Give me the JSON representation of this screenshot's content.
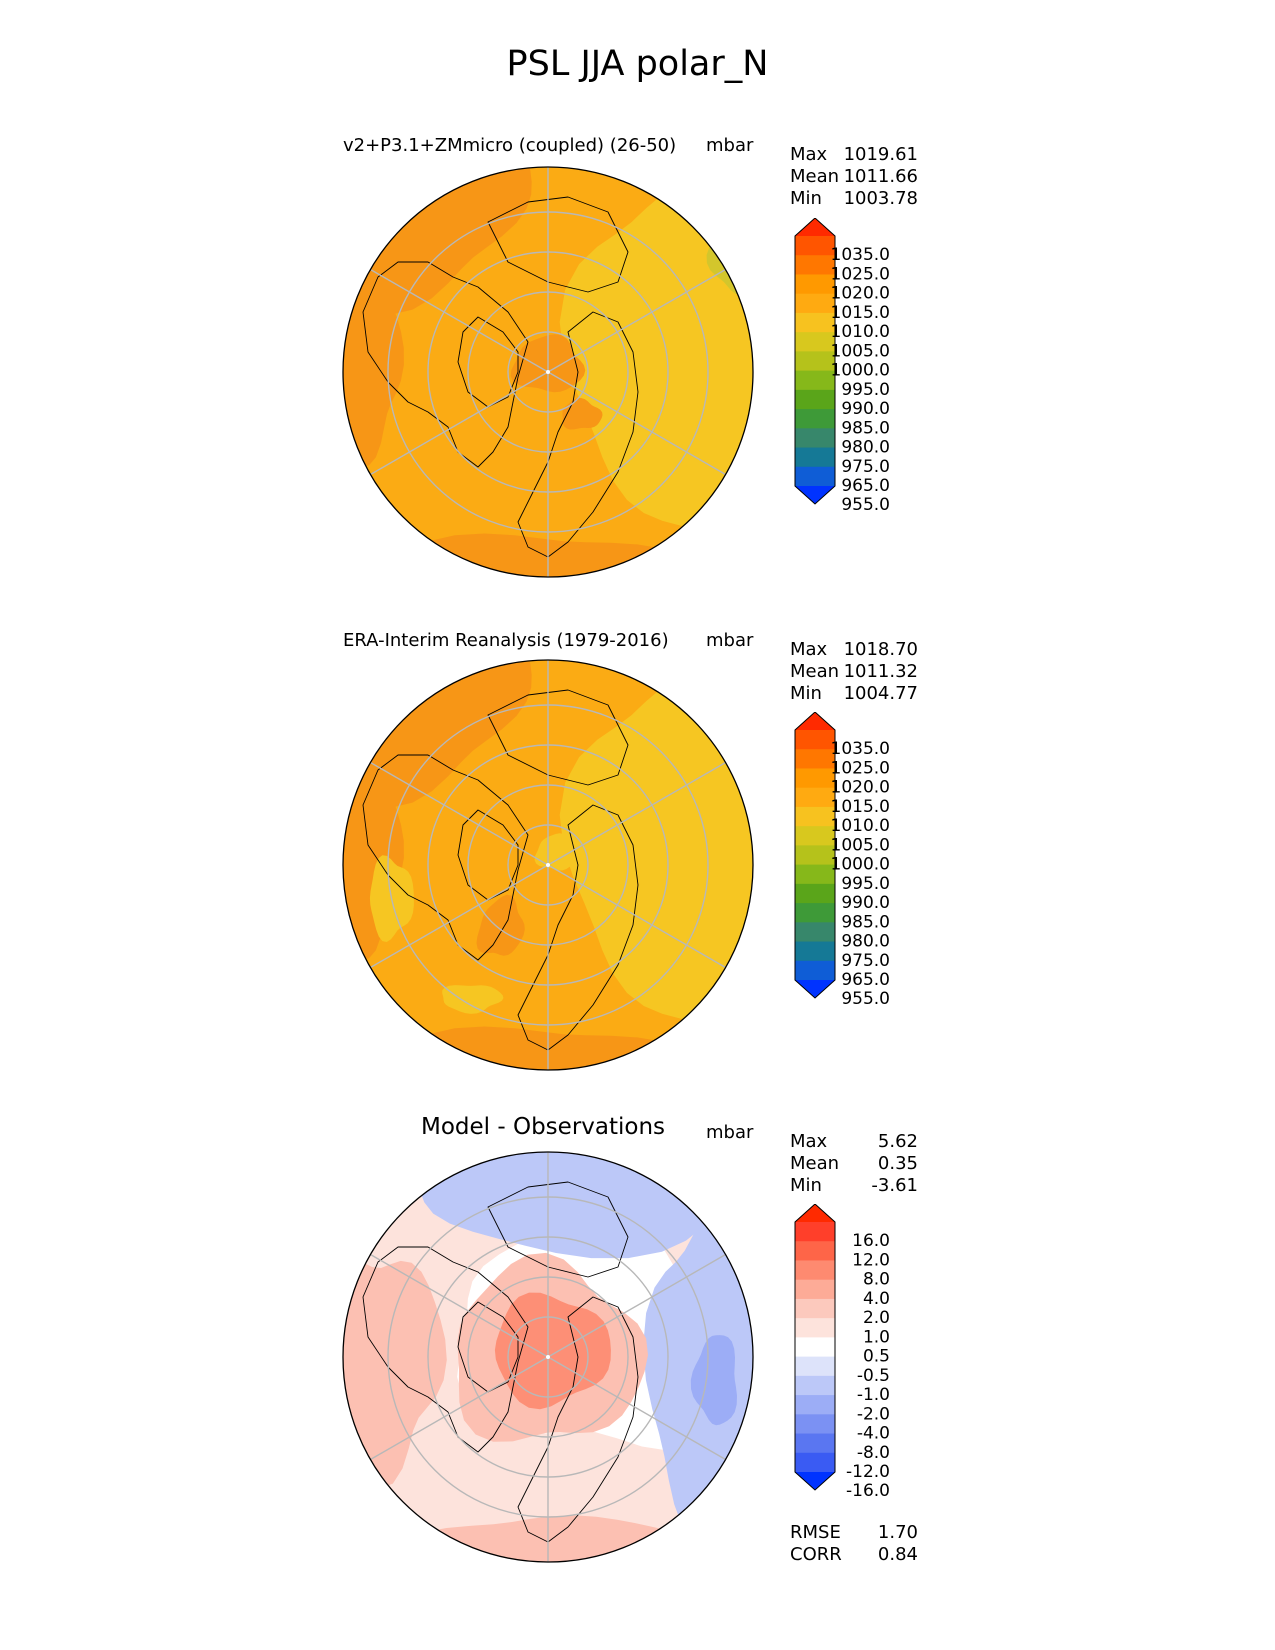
{
  "figure": {
    "title": "PSL JJA polar_N",
    "colors": {
      "ocean_outline": "#000000",
      "grid": "#b8b8b8"
    }
  },
  "panels": [
    {
      "id": "model",
      "title": "v2+P3.1+ZMmicro (coupled) (26-50)",
      "units": "mbar",
      "stats": [
        {
          "label": "Max",
          "value": "1019.61"
        },
        {
          "label": "Mean",
          "value": "1011.66"
        },
        {
          "label": "Min",
          "value": "1003.78"
        }
      ],
      "colorbar": {
        "ticks": [
          "1035.0",
          "1025.0",
          "1020.0",
          "1015.0",
          "1010.0",
          "1005.0",
          "1000.0",
          "995.0",
          "990.0",
          "985.0",
          "980.0",
          "975.0",
          "965.0",
          "955.0"
        ],
        "colors": [
          "#ff2a00",
          "#ff5500",
          "#ff7700",
          "#ff9900",
          "#ffaa11",
          "#f7c21f",
          "#d8c81e",
          "#b5c21b",
          "#86b81a",
          "#5aa51a",
          "#3e9a38",
          "#37876b",
          "#157996",
          "#0f5dd6",
          "#0033ff"
        ],
        "extend": "both"
      },
      "map_colors": {
        "base": "#fbab14",
        "high": "#f79616",
        "low": "#f6c622",
        "lowest": "#d3c62c"
      }
    },
    {
      "id": "obs",
      "title": "ERA-Interim Reanalysis (1979-2016)",
      "units": "mbar",
      "stats": [
        {
          "label": "Max",
          "value": "1018.70"
        },
        {
          "label": "Mean",
          "value": "1011.32"
        },
        {
          "label": "Min",
          "value": "1004.77"
        }
      ],
      "colorbar": {
        "ticks": [
          "1035.0",
          "1025.0",
          "1020.0",
          "1015.0",
          "1010.0",
          "1005.0",
          "1000.0",
          "995.0",
          "990.0",
          "985.0",
          "980.0",
          "975.0",
          "965.0",
          "955.0"
        ],
        "colors": [
          "#ff2a00",
          "#ff5500",
          "#ff7700",
          "#ff9900",
          "#ffaa11",
          "#f7c21f",
          "#d8c81e",
          "#b5c21b",
          "#86b81a",
          "#5aa51a",
          "#3e9a38",
          "#37876b",
          "#157996",
          "#0f5dd6",
          "#0033ff"
        ],
        "extend": "both"
      },
      "map_colors": {
        "base": "#fbab14",
        "high": "#f79616",
        "low": "#f6c622",
        "lowest": "#f6c622"
      }
    },
    {
      "id": "diff",
      "title": "Model - Observations",
      "units": "mbar",
      "stats": [
        {
          "label": "Max",
          "value": "5.62"
        },
        {
          "label": "Mean",
          "value": "0.35"
        },
        {
          "label": "Min",
          "value": "-3.61"
        }
      ],
      "colorbar": {
        "ticks": [
          "16.0",
          "12.0",
          "8.0",
          "4.0",
          "2.0",
          "1.0",
          "0.5",
          "-0.5",
          "-1.0",
          "-2.0",
          "-4.0",
          "-8.0",
          "-12.0",
          "-16.0"
        ],
        "colors": [
          "#ff2a00",
          "#ff3f2a",
          "#fe6548",
          "#fe8a70",
          "#fdab97",
          "#fcc9bd",
          "#fde3dc",
          "#ffffff",
          "#dde3fa",
          "#bcc8f8",
          "#9cadf6",
          "#7b91f3",
          "#5a76f1",
          "#3a5bf3",
          "#0033ff"
        ],
        "extend": "both"
      },
      "map_colors": {
        "base": "#fde3dc",
        "high": "#fd8f76",
        "low": "#bcc8f8",
        "lowest": "#9cadf6",
        "neutral": "#ffffff",
        "mid": "#fcc0b2"
      },
      "metrics": [
        {
          "label": "RMSE",
          "value": "1.70"
        },
        {
          "label": "CORR",
          "value": "0.84"
        }
      ]
    }
  ]
}
